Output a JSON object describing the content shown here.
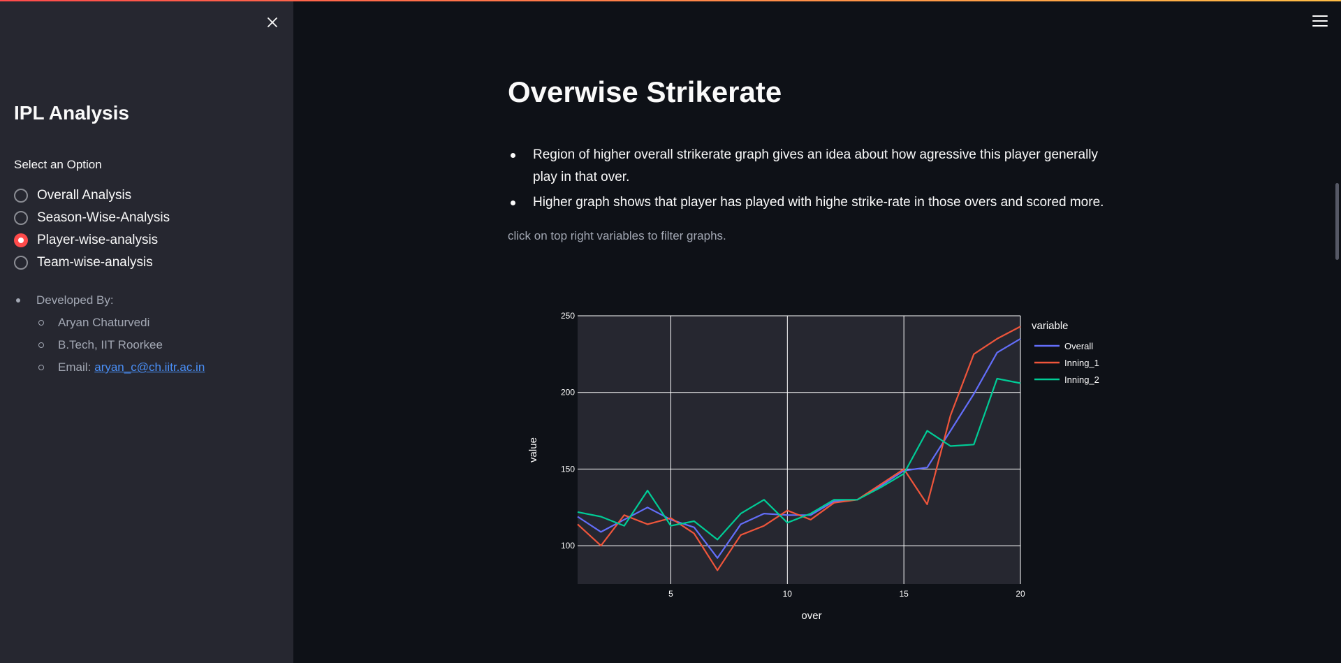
{
  "sidebar": {
    "title": "IPL Analysis",
    "select_label": "Select an Option",
    "options": [
      {
        "label": "Overall Analysis",
        "selected": false
      },
      {
        "label": "Season-Wise-Analysis",
        "selected": false
      },
      {
        "label": "Player-wise-analysis",
        "selected": true
      },
      {
        "label": "Team-wise-analysis",
        "selected": false
      }
    ],
    "credits": {
      "heading": "Developed By:",
      "name": "Aryan Chaturvedi",
      "degree": "B.Tech, IIT Roorkee",
      "email_label": "Email:",
      "email": "aryan_c@ch.iitr.ac.in"
    },
    "close_icon": "close-icon"
  },
  "header": {
    "menu_icon": "hamburger-menu-icon"
  },
  "main": {
    "title": "Overwise Strikerate",
    "bullets": [
      "Region of higher overall strikerate graph gives an idea about how agressive this player generally play in that over.",
      "Higher graph shows that player has played with highe strike-rate in those overs and scored more."
    ],
    "caption": "click on top right variables to filter graphs."
  },
  "colors": {
    "accent": "#ff4b4b",
    "sidebar_bg": "#262730",
    "main_bg": "#0e1117",
    "plot_bg": "#262730",
    "link": "#4a8ff7"
  },
  "chart_data": {
    "type": "line",
    "title": "",
    "xlabel": "over",
    "ylabel": "value",
    "x": [
      1,
      2,
      3,
      4,
      5,
      6,
      7,
      8,
      9,
      10,
      11,
      12,
      13,
      14,
      15,
      16,
      17,
      18,
      19,
      20
    ],
    "xlim": [
      1,
      20
    ],
    "ylim": [
      75,
      250
    ],
    "xticks": [
      5,
      10,
      15,
      20
    ],
    "yticks": [
      100,
      150,
      200,
      250
    ],
    "legend_title": "variable",
    "legend_position": "top-right",
    "grid": true,
    "series": [
      {
        "name": "Overall",
        "color": "#636efa",
        "values": [
          119,
          109,
          117,
          125,
          117,
          112,
          92,
          114,
          121,
          120,
          120,
          129,
          130,
          139,
          149,
          151,
          175,
          199,
          226,
          235
        ]
      },
      {
        "name": "Inning_1",
        "color": "#ef553b",
        "values": [
          114,
          100,
          120,
          114,
          118,
          108,
          84,
          107,
          113,
          123,
          117,
          128,
          130,
          140,
          150,
          127,
          185,
          225,
          235,
          243
        ]
      },
      {
        "name": "Inning_2",
        "color": "#00cc96",
        "values": [
          122,
          119,
          113,
          136,
          113,
          116,
          104,
          121,
          130,
          115,
          121,
          130,
          130,
          138,
          147,
          175,
          165,
          166,
          209,
          206
        ]
      }
    ]
  }
}
